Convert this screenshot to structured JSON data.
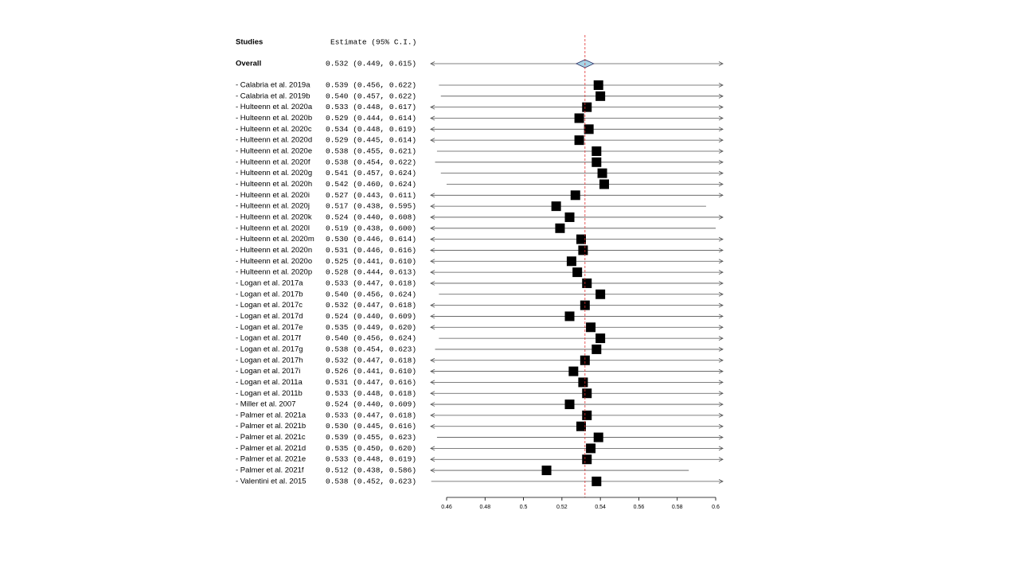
{
  "chart_data": {
    "type": "forest",
    "study_header": "Studies",
    "estimate_header": "Estimate (95% C.I.)",
    "overall": {
      "label": "Overall",
      "estimate": 0.532,
      "lower": 0.449,
      "upper": 0.615,
      "estimate_label": "0.532 (0.449, 0.615)",
      "color": "#a8d4e6"
    },
    "studies": {
      "labels": [
        "- Calabria et al. 2019a",
        "- Calabria et al. 2019b",
        "- Hulteenn et al. 2020a",
        "- Hulteenn et al. 2020b",
        "- Hulteenn et al. 2020c",
        "- Hulteenn et al. 2020d",
        "- Hulteenn et al. 2020e",
        "- Hulteenn et al. 2020f",
        "- Hulteenn et al. 2020g",
        "- Hulteenn et al. 2020h",
        "- Hulteenn et al. 2020i",
        "- Hulteenn et al. 2020j",
        "- Hulteenn et al. 2020k",
        "- Hulteenn et al. 2020l",
        "- Hulteenn et al. 2020m",
        "- Hulteenn et al. 2020n",
        "- Hulteenn et al. 2020o",
        "- Hulteenn et al. 2020p",
        "- Logan et al. 2017a",
        "- Logan et al. 2017b",
        "- Logan et al. 2017c",
        "- Logan et al. 2017d",
        "- Logan et al. 2017e",
        "- Logan et al. 2017f",
        "- Logan et al. 2017g",
        "- Logan et al. 2017h",
        "- Logan et al. 2017i",
        "- Logan et al. 2011a",
        "- Logan et al. 2011b",
        "- Miller et al. 2007",
        "- Palmer et al. 2021a",
        "- Palmer et al. 2021b",
        "- Palmer et al. 2021c",
        "- Palmer et al. 2021d",
        "- Palmer et al. 2021e",
        "- Palmer et al. 2021f",
        "- Valentini et al. 2015"
      ],
      "estimates": [
        0.539,
        0.54,
        0.533,
        0.529,
        0.534,
        0.529,
        0.538,
        0.538,
        0.541,
        0.542,
        0.527,
        0.517,
        0.524,
        0.519,
        0.53,
        0.531,
        0.525,
        0.528,
        0.533,
        0.54,
        0.532,
        0.524,
        0.535,
        0.54,
        0.538,
        0.532,
        0.526,
        0.531,
        0.533,
        0.524,
        0.533,
        0.53,
        0.539,
        0.535,
        0.533,
        0.512,
        0.538
      ],
      "lower": [
        0.456,
        0.457,
        0.448,
        0.444,
        0.448,
        0.445,
        0.455,
        0.454,
        0.457,
        0.46,
        0.443,
        0.438,
        0.44,
        0.438,
        0.446,
        0.446,
        0.441,
        0.444,
        0.447,
        0.456,
        0.447,
        0.44,
        0.449,
        0.456,
        0.454,
        0.447,
        0.441,
        0.447,
        0.448,
        0.44,
        0.447,
        0.445,
        0.455,
        0.45,
        0.448,
        0.438,
        0.452
      ],
      "upper": [
        0.622,
        0.622,
        0.617,
        0.614,
        0.619,
        0.614,
        0.621,
        0.622,
        0.624,
        0.624,
        0.611,
        0.595,
        0.608,
        0.6,
        0.614,
        0.616,
        0.61,
        0.613,
        0.618,
        0.624,
        0.618,
        0.609,
        0.62,
        0.624,
        0.623,
        0.618,
        0.61,
        0.616,
        0.618,
        0.609,
        0.618,
        0.616,
        0.623,
        0.62,
        0.619,
        0.586,
        0.623
      ],
      "estimate_labels": [
        "0.539 (0.456, 0.622)",
        "0.540 (0.457, 0.622)",
        "0.533 (0.448, 0.617)",
        "0.529 (0.444, 0.614)",
        "0.534 (0.448, 0.619)",
        "0.529 (0.445, 0.614)",
        "0.538 (0.455, 0.621)",
        "0.538 (0.454, 0.622)",
        "0.541 (0.457, 0.624)",
        "0.542 (0.460, 0.624)",
        "0.527 (0.443, 0.611)",
        "0.517 (0.438, 0.595)",
        "0.524 (0.440, 0.608)",
        "0.519 (0.438, 0.600)",
        "0.530 (0.446, 0.614)",
        "0.531 (0.446, 0.616)",
        "0.525 (0.441, 0.610)",
        "0.528 (0.444, 0.613)",
        "0.533 (0.447, 0.618)",
        "0.540 (0.456, 0.624)",
        "0.532 (0.447, 0.618)",
        "0.524 (0.440, 0.609)",
        "0.535 (0.449, 0.620)",
        "0.540 (0.456, 0.624)",
        "0.538 (0.454, 0.623)",
        "0.532 (0.447, 0.618)",
        "0.526 (0.441, 0.610)",
        "0.531 (0.447, 0.616)",
        "0.533 (0.448, 0.618)",
        "0.524 (0.440, 0.609)",
        "0.533 (0.447, 0.618)",
        "0.530 (0.445, 0.616)",
        "0.539 (0.455, 0.623)",
        "0.535 (0.450, 0.620)",
        "0.533 (0.448, 0.619)",
        "0.512 (0.438, 0.586)",
        "0.538 (0.452, 0.623)"
      ],
      "color": "#000000"
    },
    "reference_color": "#e03030",
    "xlim": [
      0.46,
      0.6
    ],
    "xticks": [
      0.46,
      0.48,
      0.5,
      0.52,
      0.54,
      0.56,
      0.58,
      0.6
    ]
  }
}
